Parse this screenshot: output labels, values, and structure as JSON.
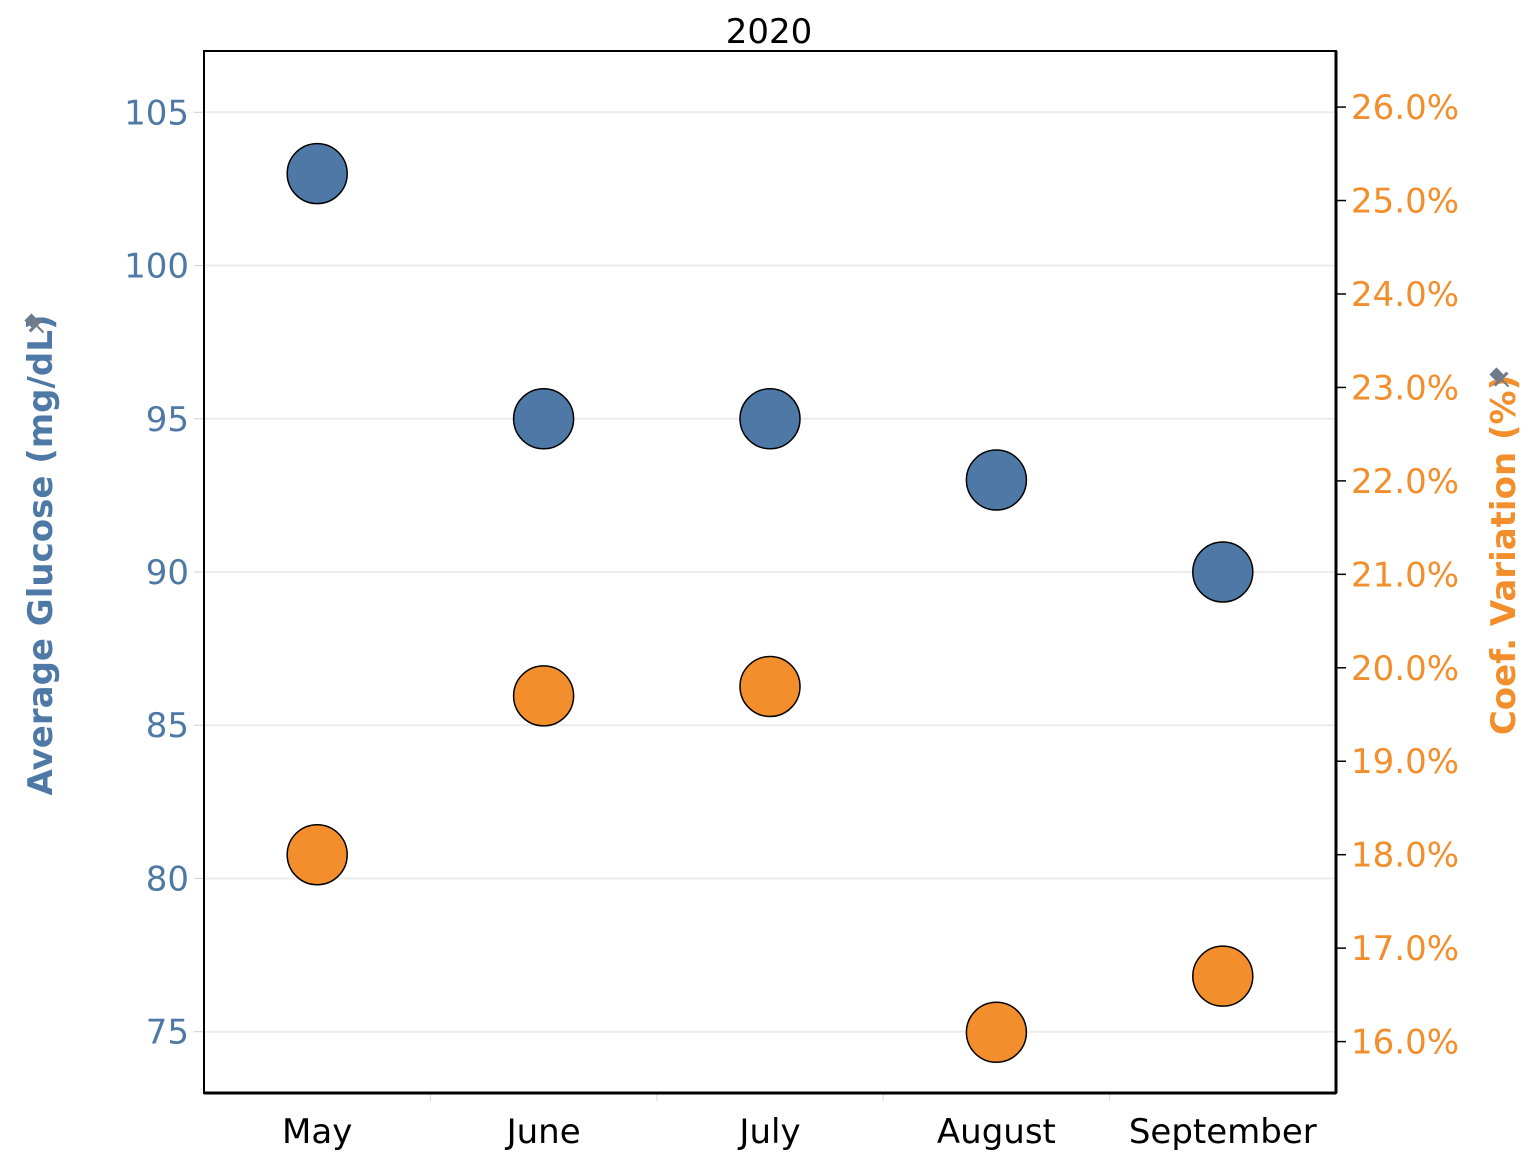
{
  "chart_data": {
    "type": "scatter",
    "title": "2020",
    "categories": [
      "May",
      "June",
      "July",
      "August",
      "September"
    ],
    "y_left": {
      "label": "Average Glucose (mg/dL)",
      "ticks": [
        "75",
        "80",
        "85",
        "90",
        "95",
        "100",
        "105"
      ],
      "range": [
        73,
        107
      ],
      "color": "#4e79a7"
    },
    "y_right": {
      "label": "Coef. Variation (%)",
      "ticks": [
        "16.0%",
        "17.0%",
        "18.0%",
        "19.0%",
        "20.0%",
        "21.0%",
        "22.0%",
        "23.0%",
        "24.0%",
        "25.0%",
        "26.0%"
      ],
      "range": [
        15.45,
        26.6
      ],
      "color": "#f28e2b"
    },
    "series": [
      {
        "name": "Average Glucose (mg/dL)",
        "axis": "left",
        "color": "#4e79a7",
        "values": [
          103,
          95,
          95,
          93,
          90
        ]
      },
      {
        "name": "Coef. Variation (%)",
        "axis": "right",
        "color": "#f28e2b",
        "values": [
          18.0,
          19.7,
          19.8,
          16.1,
          16.7
        ]
      }
    ],
    "grid": true,
    "pin_icon": "pin-icon"
  }
}
